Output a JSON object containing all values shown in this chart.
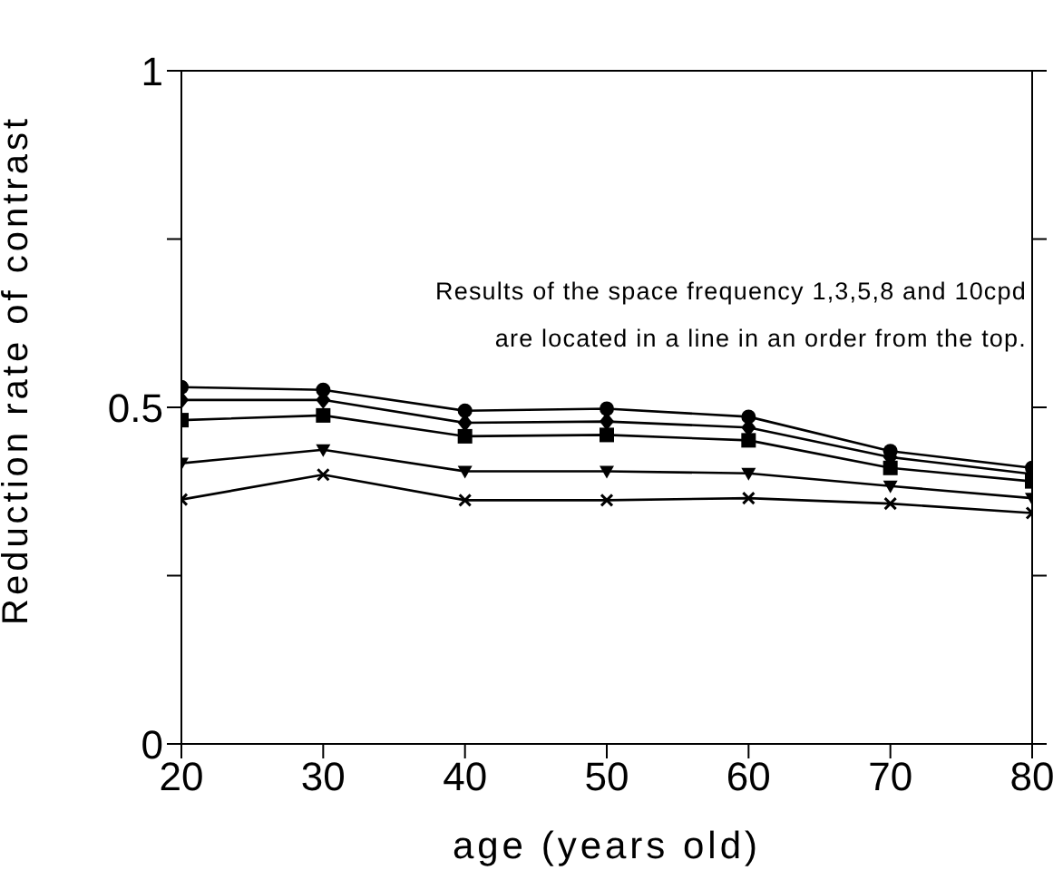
{
  "chart_data": {
    "type": "line",
    "xlabel": "age (years old)",
    "ylabel": "Reduction rate of contrast",
    "annotations": [
      "Results of the space frequency 1,3,5,8 and 10cpd",
      "are located in a line in an order from the top."
    ],
    "x": [
      20,
      30,
      40,
      50,
      60,
      70,
      80
    ],
    "xlim": [
      20,
      80
    ],
    "xticks": [
      20,
      30,
      40,
      50,
      60,
      70,
      80
    ],
    "ylim": [
      0,
      1
    ],
    "yticks": [
      0,
      {
        "value": 0.25,
        "label": null
      },
      0.5,
      {
        "value": 0.75,
        "label": null
      },
      1
    ],
    "series": [
      {
        "color": "#000000",
        "marker": "circle",
        "values": [
          0.53,
          0.526,
          0.495,
          0.498,
          0.486,
          0.435,
          0.41
        ]
      },
      {
        "color": "#000000",
        "marker": "diamond",
        "values": [
          0.511,
          0.511,
          0.477,
          0.479,
          0.47,
          0.426,
          0.401
        ]
      },
      {
        "color": "#000000",
        "marker": "square",
        "values": [
          0.481,
          0.488,
          0.457,
          0.459,
          0.451,
          0.41,
          0.39
        ]
      },
      {
        "color": "#000000",
        "marker": "triangle",
        "values": [
          0.417,
          0.437,
          0.405,
          0.405,
          0.402,
          0.383,
          0.365
        ]
      },
      {
        "color": "#000000",
        "marker": "cross",
        "values": [
          0.363,
          0.4,
          0.362,
          0.362,
          0.365,
          0.357,
          0.343
        ]
      }
    ]
  }
}
